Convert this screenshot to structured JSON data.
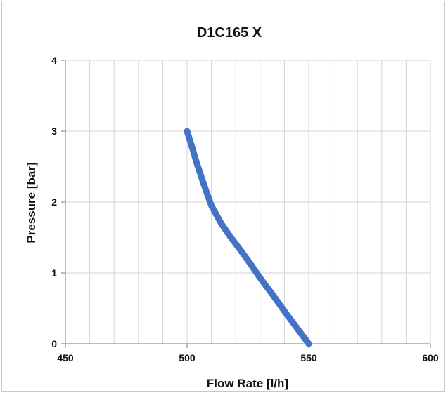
{
  "chart_data": {
    "type": "line",
    "title": "D1C165 X",
    "xlabel": "Flow Rate [l/h]",
    "ylabel": "Pressure [bar]",
    "xlim": [
      450,
      600
    ],
    "ylim": [
      0,
      4
    ],
    "x_ticks": [
      "450",
      "500",
      "550",
      "600"
    ],
    "y_ticks": [
      "0",
      "1",
      "2",
      "3",
      "4"
    ],
    "x_minor_step": 10,
    "grid": true,
    "legend": "none",
    "series": [
      {
        "color": "#4472C4",
        "x": [
          500,
          502,
          504,
          506,
          508,
          510,
          514,
          518,
          522,
          526,
          530,
          535,
          540,
          545,
          550
        ],
        "y": [
          3.0,
          2.78,
          2.55,
          2.34,
          2.14,
          1.95,
          1.7,
          1.5,
          1.32,
          1.13,
          0.93,
          0.7,
          0.46,
          0.23,
          0.0
        ]
      }
    ]
  }
}
